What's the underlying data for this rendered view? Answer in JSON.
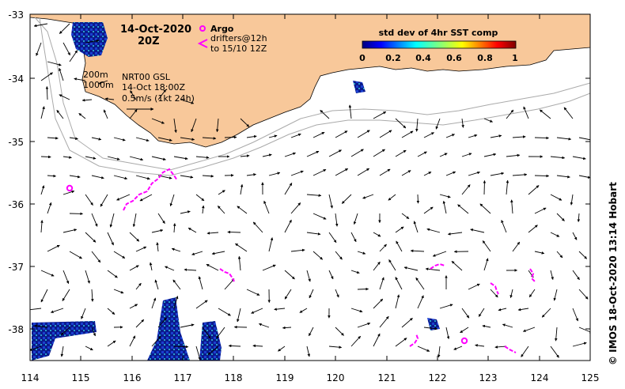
{
  "map": {
    "title_date": "14-Oct-2020",
    "title_time": "20Z",
    "legend_argo": "Argo",
    "legend_drifters_line1": "drifters@12h",
    "legend_drifters_line2": "to 15/10 12Z",
    "contour_label_200": "200m",
    "contour_label_1000": "1000m",
    "velocity_source": "NRT00 GSL",
    "velocity_time": "14-Oct 18:00Z",
    "scale_label": "0.5m/s (1kt 24h)",
    "colorbar_title": "std dev of 4hr SST comp",
    "colorbar_ticks": [
      "0",
      "0.2",
      "0.4",
      "0.6",
      "0.8",
      "1"
    ],
    "credit": "© IMOS 18-Oct-2020 13:14 Hobart",
    "x_ticks": [
      "114",
      "115",
      "116",
      "117",
      "118",
      "119",
      "120",
      "121",
      "122",
      "123",
      "124",
      "125"
    ],
    "y_ticks": [
      "-33",
      "-34",
      "-35",
      "-36",
      "-37",
      "-38"
    ],
    "colors": {
      "land": "#f8c89a",
      "argo": "#ff00ff",
      "drifter": "#ff00ff",
      "isobath": "#aaaaaa",
      "sst_low": "#0a1a8c"
    }
  }
}
